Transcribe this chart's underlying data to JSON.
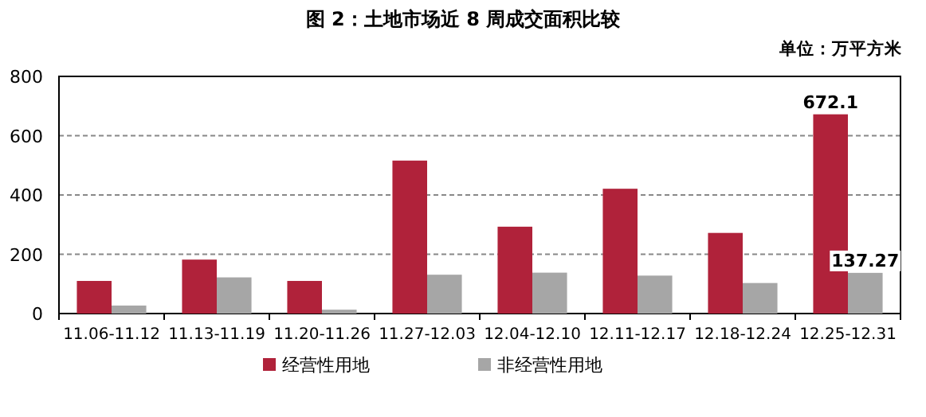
{
  "chart_data": {
    "type": "bar",
    "title": "图 2：土地市场近 8 周成交面积比较",
    "annotations": [
      "单位：万平方米"
    ],
    "categories": [
      "11.06-11.12",
      "11.13-11.19",
      "11.20-11.26",
      "11.27-12.03",
      "12.04-12.10",
      "12.11-12.17",
      "12.18-12.24",
      "12.25-12.31"
    ],
    "series": [
      {
        "name": "经营性用地",
        "color": "#b0223a",
        "values": [
          110,
          182,
          110,
          516,
          293,
          421,
          272,
          672.1
        ],
        "value_labels": [
          null,
          null,
          null,
          null,
          null,
          null,
          null,
          "672.1"
        ]
      },
      {
        "name": "非经营性用地",
        "color": "#a6a6a6",
        "values": [
          27,
          122,
          13,
          131,
          138,
          128,
          103,
          137.27
        ],
        "value_labels": [
          null,
          null,
          null,
          null,
          null,
          null,
          null,
          "137.27"
        ]
      }
    ],
    "ylim": [
      0,
      800
    ],
    "yticks": [
      0,
      200,
      400,
      600,
      800
    ],
    "grid": "y",
    "legend": "bottom"
  }
}
